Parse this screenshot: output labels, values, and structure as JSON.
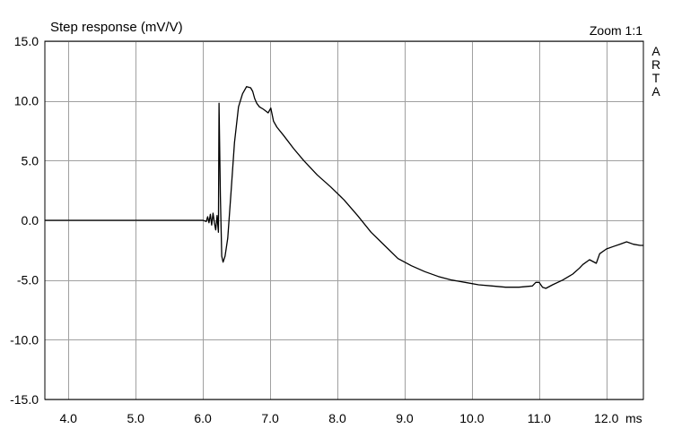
{
  "chart_data": {
    "type": "line",
    "title": "Step response (mV/V)",
    "zoom_label": "Zoom 1:1",
    "brand_label": "ARTA",
    "x_unit": "ms",
    "xlim": [
      3.65,
      12.55
    ],
    "ylim": [
      -15.0,
      15.0
    ],
    "x_ticks": [
      4.0,
      5.0,
      6.0,
      7.0,
      8.0,
      9.0,
      10.0,
      11.0,
      12.0
    ],
    "x_tick_labels": [
      "4.0",
      "5.0",
      "6.0",
      "7.0",
      "8.0",
      "9.0",
      "10.0",
      "11.0",
      "12.0"
    ],
    "y_ticks": [
      15.0,
      10.0,
      5.0,
      0.0,
      -5.0,
      -10.0,
      -15.0
    ],
    "y_tick_labels": [
      "15.0",
      "10.0",
      "5.0",
      "0.0",
      "-5.0",
      "-10.0",
      "-15.0"
    ],
    "grid": true,
    "line_color": "#000000",
    "grid_color": "#a0a0a0",
    "series": [
      {
        "x": [
          3.65,
          5.0,
          6.0,
          6.05,
          6.07,
          6.09,
          6.11,
          6.13,
          6.15,
          6.17,
          6.19,
          6.21,
          6.23,
          6.24,
          6.26,
          6.28,
          6.3,
          6.33,
          6.37,
          6.42,
          6.47,
          6.53,
          6.59,
          6.65,
          6.71,
          6.74,
          6.77,
          6.8,
          6.84,
          6.9,
          6.97,
          7.01,
          7.05,
          7.1,
          7.2,
          7.35,
          7.5,
          7.7,
          7.9,
          8.1,
          8.3,
          8.5,
          8.7,
          8.9,
          9.1,
          9.3,
          9.5,
          9.7,
          9.9,
          10.1,
          10.3,
          10.5,
          10.7,
          10.9,
          10.95,
          11.0,
          11.05,
          11.1,
          11.2,
          11.35,
          11.5,
          11.6,
          11.65,
          11.75,
          11.85,
          11.9,
          12.0,
          12.1,
          12.2,
          12.3,
          12.4,
          12.5,
          12.55
        ],
        "y": [
          0.0,
          0.0,
          0.0,
          -0.1,
          0.3,
          -0.2,
          0.5,
          -0.4,
          0.6,
          -0.2,
          -0.8,
          0.4,
          -1.0,
          9.8,
          2.0,
          -3.0,
          -3.5,
          -3.0,
          -1.5,
          2.5,
          6.5,
          9.5,
          10.6,
          11.2,
          11.1,
          10.8,
          10.2,
          9.8,
          9.5,
          9.3,
          9.0,
          9.4,
          8.3,
          7.8,
          7.1,
          6.0,
          5.0,
          3.8,
          2.8,
          1.7,
          0.4,
          -1.0,
          -2.1,
          -3.2,
          -3.8,
          -4.3,
          -4.7,
          -5.0,
          -5.2,
          -5.4,
          -5.5,
          -5.6,
          -5.6,
          -5.5,
          -5.2,
          -5.2,
          -5.6,
          -5.7,
          -5.4,
          -5.0,
          -4.5,
          -4.0,
          -3.7,
          -3.3,
          -3.6,
          -2.8,
          -2.4,
          -2.2,
          -2.0,
          -1.8,
          -2.0,
          -2.1,
          -2.1
        ]
      }
    ]
  }
}
